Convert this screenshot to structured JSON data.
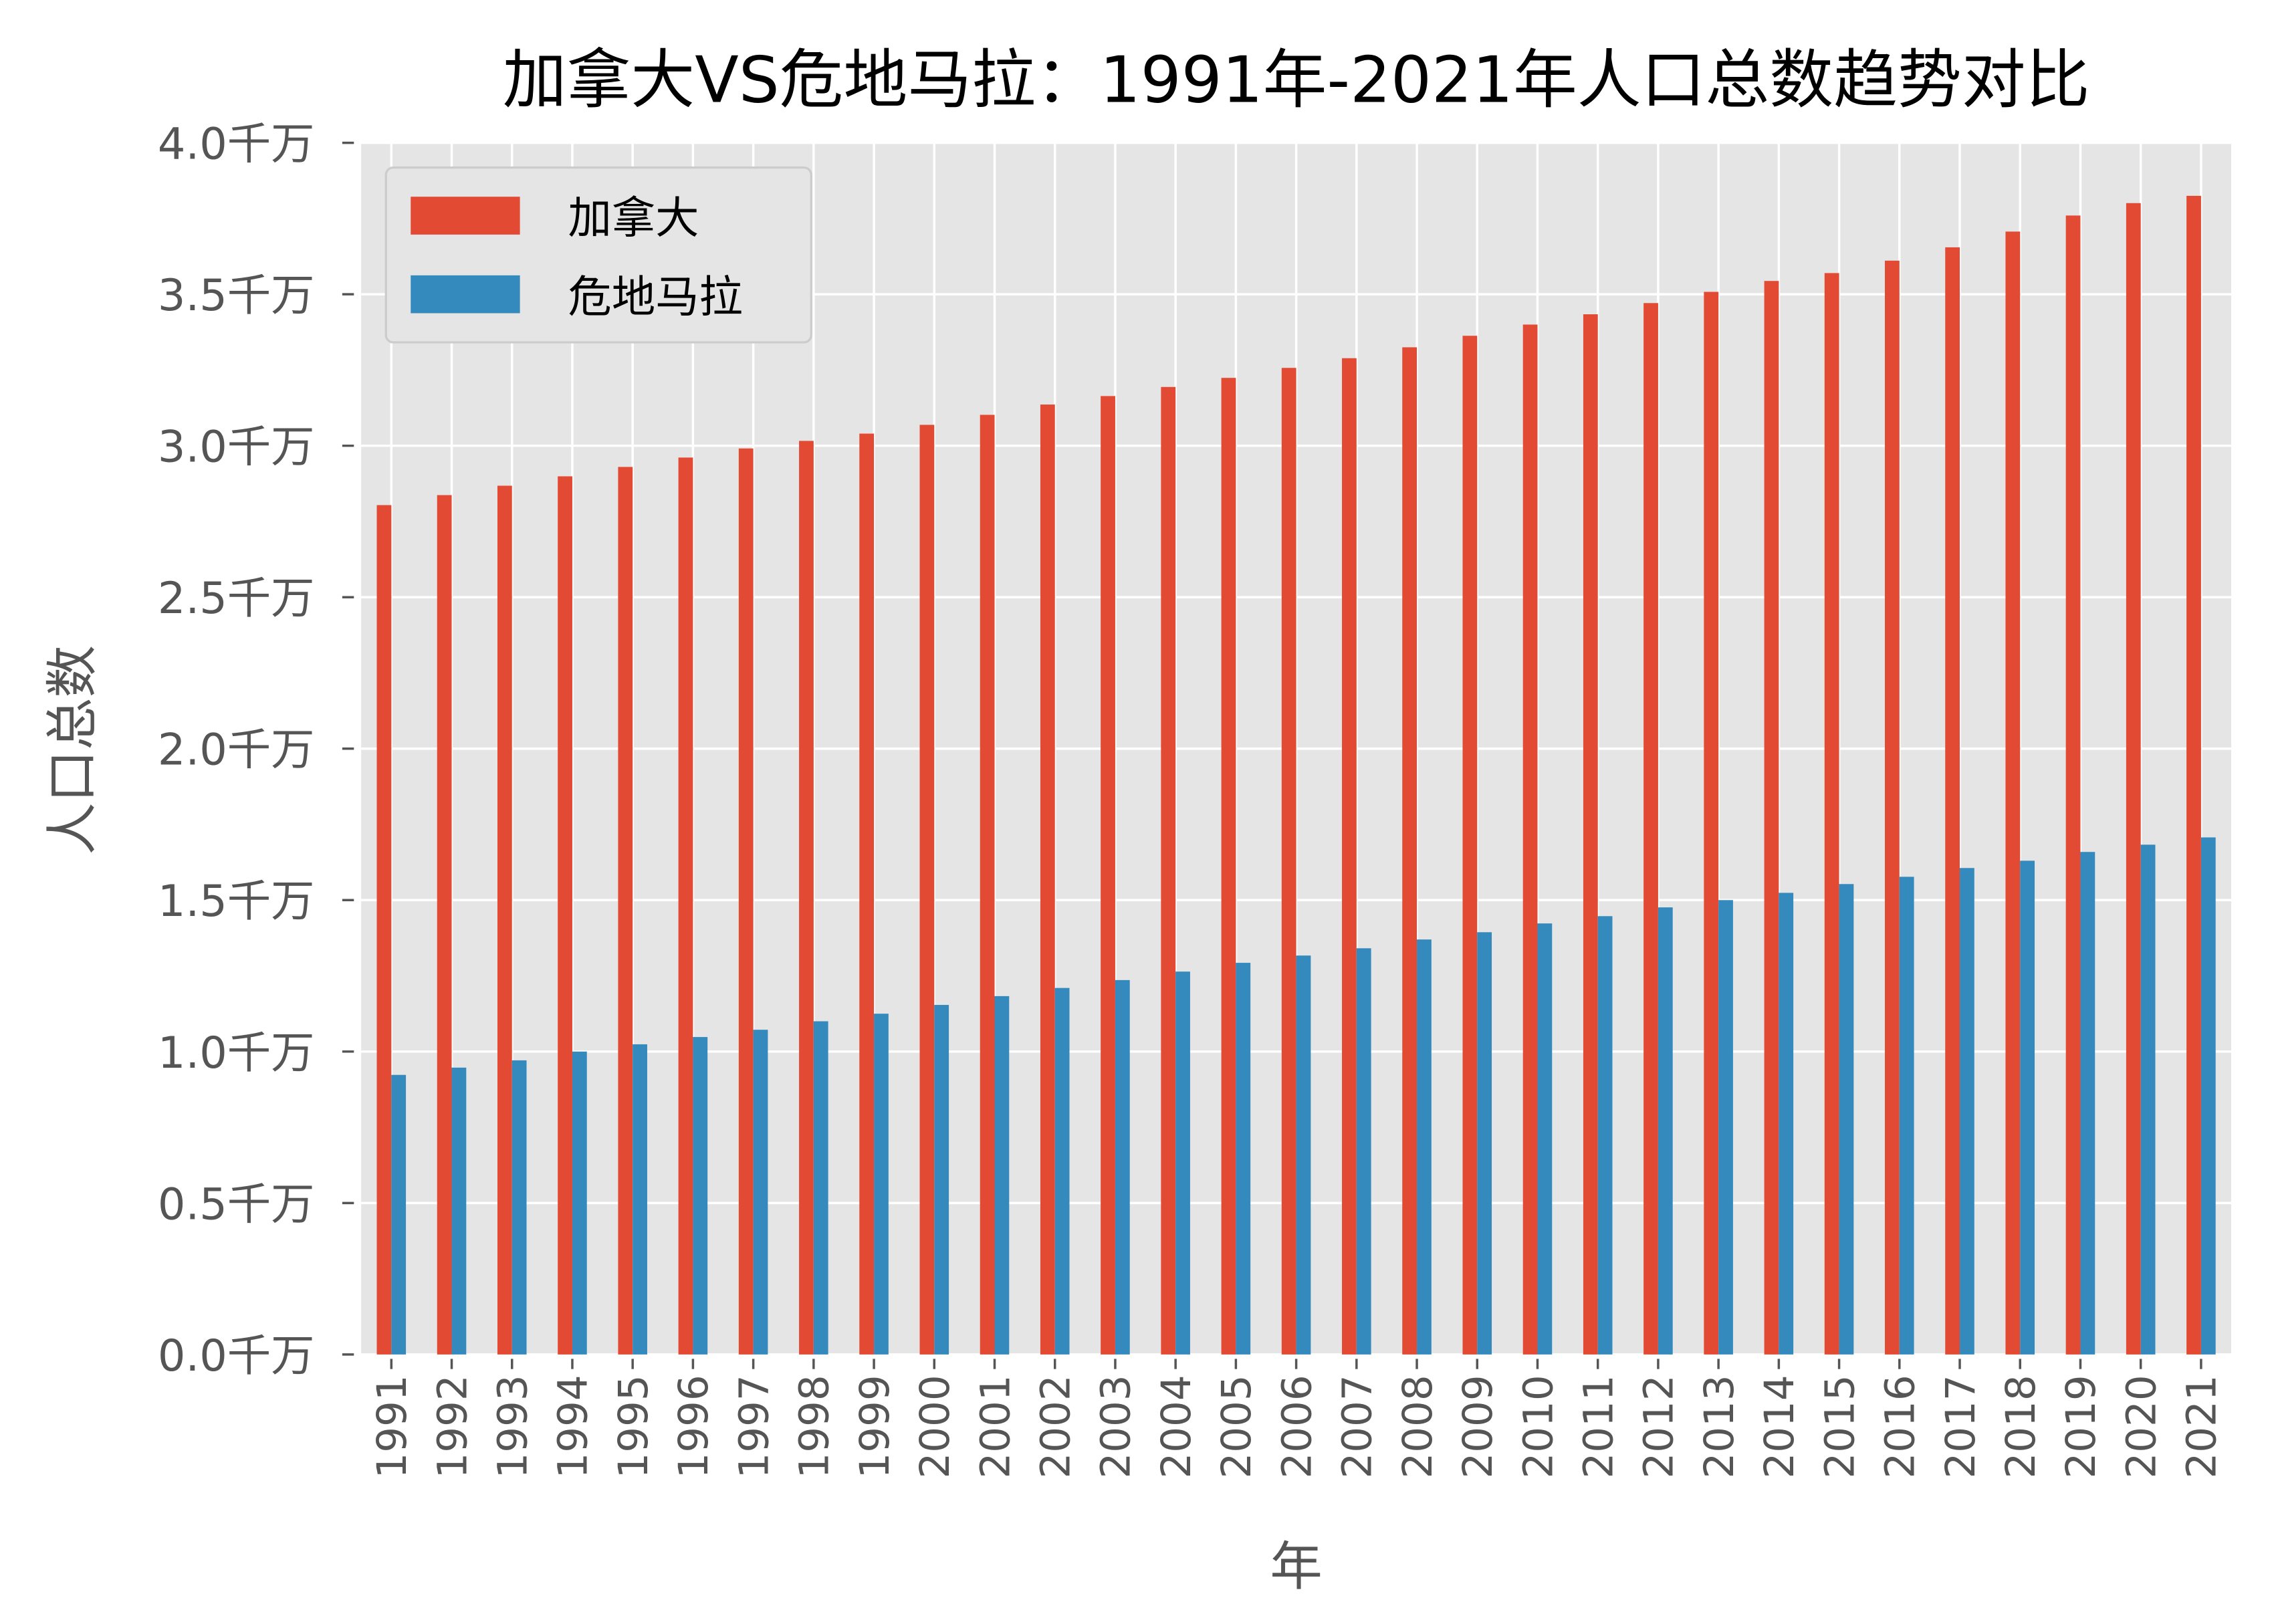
{
  "chart_data": {
    "type": "bar",
    "title": "加拿大VS危地马拉：1991年-2021年人口总数趋势对比",
    "xlabel": "年",
    "ylabel": "人口总数",
    "ylim": [
      0,
      4.0
    ],
    "y_unit": "千万",
    "yticks": [
      "0.0千万",
      "0.5千万",
      "1.0千万",
      "1.5千万",
      "2.0千万",
      "2.5千万",
      "3.0千万",
      "3.5千万",
      "4.0千万"
    ],
    "grid": true,
    "legend_position": "top-left",
    "categories": [
      "1991",
      "1992",
      "1993",
      "1994",
      "1995",
      "1996",
      "1997",
      "1998",
      "1999",
      "2000",
      "2001",
      "2002",
      "2003",
      "2004",
      "2005",
      "2006",
      "2007",
      "2008",
      "2009",
      "2010",
      "2011",
      "2012",
      "2013",
      "2014",
      "2015",
      "2016",
      "2017",
      "2018",
      "2019",
      "2020",
      "2021"
    ],
    "series": [
      {
        "name": "加拿大",
        "color": "#E24A33",
        "values": [
          2.804,
          2.837,
          2.868,
          2.899,
          2.93,
          2.961,
          2.991,
          3.016,
          3.04,
          3.069,
          3.102,
          3.136,
          3.164,
          3.194,
          3.224,
          3.257,
          3.289,
          3.325,
          3.363,
          3.4,
          3.434,
          3.471,
          3.508,
          3.544,
          3.57,
          3.611,
          3.655,
          3.707,
          3.76,
          3.801,
          3.825
        ]
      },
      {
        "name": "危地马拉",
        "color": "#348ABD",
        "values": [
          0.923,
          0.947,
          0.971,
          1.0,
          1.024,
          1.048,
          1.072,
          1.1,
          1.125,
          1.154,
          1.183,
          1.21,
          1.236,
          1.264,
          1.293,
          1.317,
          1.341,
          1.37,
          1.394,
          1.423,
          1.447,
          1.476,
          1.5,
          1.524,
          1.553,
          1.577,
          1.606,
          1.63,
          1.659,
          1.683,
          1.707
        ]
      }
    ]
  }
}
